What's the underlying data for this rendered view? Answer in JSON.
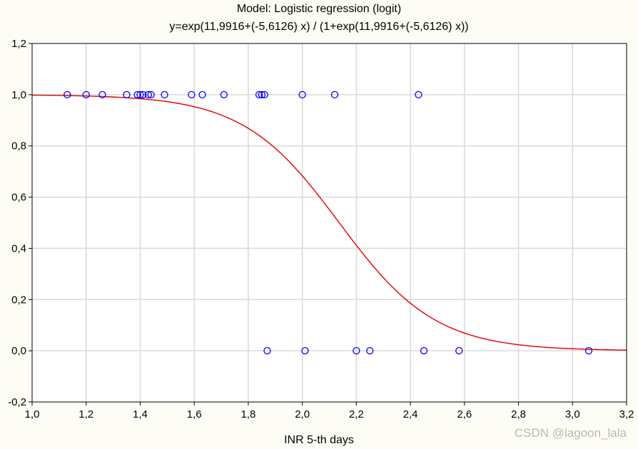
{
  "chart_data": {
    "type": "scatter",
    "title": "Model: Logistic regression (logit)",
    "subtitle": "y=exp(11,9916+(-5,6126) x) / (1+exp(11,9916+(-5,6126) x))",
    "xlabel": "INR 5-th days",
    "ylabel": "",
    "xlim": [
      1.0,
      3.2
    ],
    "ylim": [
      -0.2,
      1.2
    ],
    "x_ticks": [
      "1,0",
      "1,2",
      "1,4",
      "1,6",
      "1,8",
      "2,0",
      "2,2",
      "2,4",
      "2,6",
      "2,8",
      "3,0",
      "3,2"
    ],
    "y_ticks": [
      "-0,2",
      "0,0",
      "0,2",
      "0,4",
      "0,6",
      "0,8",
      "1,0",
      "1,2"
    ],
    "grid": true,
    "series": [
      {
        "type": "scatter",
        "color": "#0000ff",
        "marker": "open-circle",
        "x": [
          1.13,
          1.2,
          1.26,
          1.35,
          1.39,
          1.4,
          1.41,
          1.43,
          1.44,
          1.49,
          1.59,
          1.63,
          1.71,
          1.84,
          1.85,
          1.86,
          2.0,
          2.12,
          2.43,
          1.87,
          2.01,
          2.2,
          2.25,
          2.45,
          2.58,
          3.06
        ],
        "y": [
          1,
          1,
          1,
          1,
          1,
          1,
          1,
          1,
          1,
          1,
          1,
          1,
          1,
          1,
          1,
          1,
          1,
          1,
          1,
          0,
          0,
          0,
          0,
          0,
          0,
          0
        ]
      },
      {
        "type": "line",
        "color": "#e00000",
        "model": "logistic",
        "intercept": 11.9916,
        "slope": -5.6126
      }
    ]
  },
  "watermark": "CSDN @lagoon_lala",
  "colors": {
    "background": "#fefdf5",
    "plot_area": "#ffffff",
    "grid": "#d9d9d9",
    "points": "#0000ff",
    "curve": "#e00000"
  }
}
